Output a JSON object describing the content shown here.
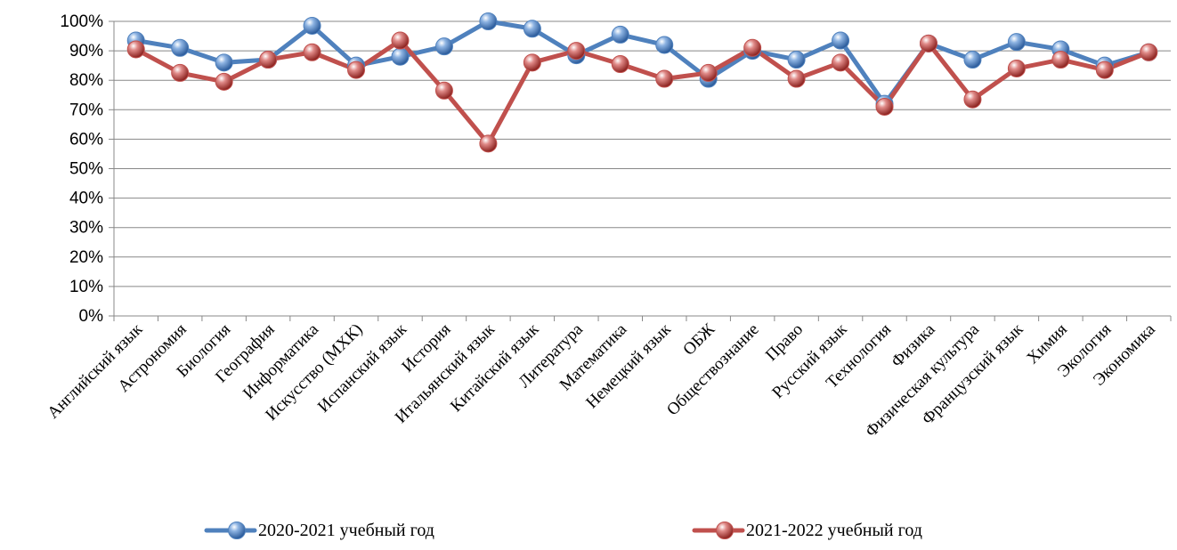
{
  "chart_data": {
    "type": "line",
    "title": "",
    "xlabel": "",
    "ylabel": "",
    "ylim": [
      0,
      100
    ],
    "y_tick_labels": [
      "0%",
      "10%",
      "20%",
      "30%",
      "40%",
      "50%",
      "60%",
      "70%",
      "80%",
      "90%",
      "100%"
    ],
    "grid": "horizontal",
    "legend_position": "bottom",
    "categories": [
      "Английский язык",
      "Астрономия",
      "Биология",
      "География",
      "Информатика",
      "Искусство (МХК)",
      "Испанский язык",
      "История",
      "Итальянский язык",
      "Китайский язык",
      "Литература",
      "Математика",
      "Немецкий язык",
      "ОБЖ",
      "Обществознание",
      "Право",
      "Русский язык",
      "Технология",
      "Физика",
      "Физическая культура",
      "Французский язык",
      "Химия",
      "Экология",
      "Экономика"
    ],
    "series": [
      {
        "name": "2020-2021 учебный год",
        "color": "#4F81BD",
        "values": [
          93.5,
          91,
          86,
          87,
          98.5,
          85,
          88,
          91.5,
          100,
          97.5,
          88.5,
          95.5,
          92,
          80.5,
          90,
          87,
          93.5,
          72,
          92.5,
          87,
          93,
          90.5,
          85,
          89.5
        ]
      },
      {
        "name": "2021-2022 учебный год",
        "color": "#C0504D",
        "values": [
          90.5,
          82.5,
          79.5,
          87,
          89.5,
          83.5,
          93.5,
          76.5,
          58.5,
          86,
          90,
          85.5,
          80.5,
          82.5,
          91,
          80.5,
          86,
          71,
          92.5,
          73.5,
          84,
          87,
          83.5,
          89.5
        ]
      }
    ]
  }
}
